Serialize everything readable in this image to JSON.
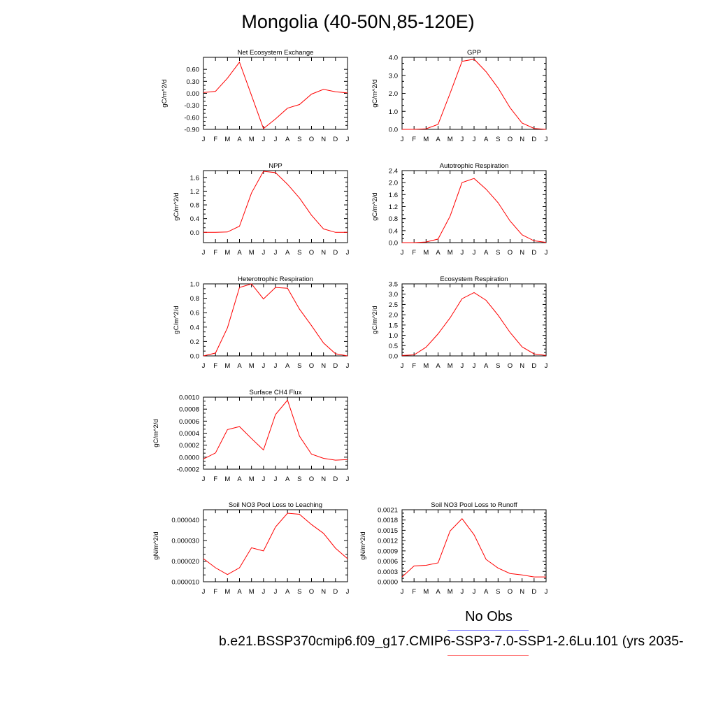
{
  "title": "Mongolia (40-50N,85-120E)",
  "legend": {
    "obs_label": "No Obs",
    "case_label": "b.e21.BSSP370cmip6.f09_g17.CMIP6-SSP3-7.0-SSP1-2.6Lu.101 (yrs 2035-",
    "obs_color": "#8080ff",
    "model_color": "#ff8080"
  },
  "colors": {
    "series": "#ff0000",
    "axis": "#000000"
  },
  "chart_data": [
    {
      "type": "line",
      "title": "Net Ecosystem Exchange",
      "ylabel": "gC/m^2/d",
      "categories": [
        "J",
        "F",
        "M",
        "A",
        "M",
        "J",
        "J",
        "A",
        "S",
        "O",
        "N",
        "D",
        "J"
      ],
      "ylim": [
        -0.9,
        0.9
      ],
      "yticks": [
        -0.9,
        -0.6,
        -0.3,
        0.0,
        0.3,
        0.6
      ],
      "ytick_labels": [
        "-0.90",
        "-0.60",
        "-0.30",
        "0.00",
        "0.30",
        "0.60"
      ],
      "values": [
        0.02,
        0.05,
        0.38,
        0.78,
        -0.05,
        -0.88,
        -0.64,
        -0.37,
        -0.28,
        -0.02,
        0.1,
        0.04,
        0.01
      ]
    },
    {
      "type": "line",
      "title": "GPP",
      "ylabel": "gC/m^2/d",
      "categories": [
        "J",
        "F",
        "M",
        "A",
        "M",
        "J",
        "J",
        "A",
        "S",
        "O",
        "N",
        "D",
        "J"
      ],
      "ylim": [
        0,
        4
      ],
      "yticks": [
        0,
        1,
        2,
        3,
        4
      ],
      "ytick_labels": [
        "0.0",
        "1.0",
        "2.0",
        "3.0",
        "4.0"
      ],
      "values": [
        0.0,
        0.0,
        0.03,
        0.28,
        2.0,
        3.78,
        3.9,
        3.2,
        2.3,
        1.2,
        0.35,
        0.05,
        0.0
      ]
    },
    {
      "type": "line",
      "title": "NPP",
      "ylabel": "gC/m^2/d",
      "categories": [
        "J",
        "F",
        "M",
        "A",
        "M",
        "J",
        "J",
        "A",
        "S",
        "O",
        "N",
        "D",
        "J"
      ],
      "ylim": [
        -0.3,
        1.8
      ],
      "yticks": [
        0.0,
        0.4,
        0.8,
        1.2,
        1.6
      ],
      "ytick_labels": [
        "0.0",
        "0.4",
        "0.8",
        "1.2",
        "1.6"
      ],
      "values": [
        0.0,
        0.0,
        0.01,
        0.18,
        1.15,
        1.78,
        1.74,
        1.4,
        1.0,
        0.5,
        0.1,
        0.0,
        0.0
      ]
    },
    {
      "type": "line",
      "title": "Autotrophic Respiration",
      "ylabel": "gC/m^2/d",
      "categories": [
        "J",
        "F",
        "M",
        "A",
        "M",
        "J",
        "J",
        "A",
        "S",
        "O",
        "N",
        "D",
        "J"
      ],
      "ylim": [
        0,
        2.4
      ],
      "yticks": [
        0,
        0.4,
        0.8,
        1.2,
        1.6,
        2.0,
        2.4
      ],
      "ytick_labels": [
        "0.0",
        "0.4",
        "0.8",
        "1.2",
        "1.6",
        "2.0",
        "2.4"
      ],
      "values": [
        0.0,
        0.0,
        0.02,
        0.12,
        0.88,
        2.0,
        2.14,
        1.78,
        1.33,
        0.72,
        0.26,
        0.06,
        0.01
      ]
    },
    {
      "type": "line",
      "title": "Heterotrophic Respiration",
      "ylabel": "gC/m^2/d",
      "categories": [
        "J",
        "F",
        "M",
        "A",
        "M",
        "J",
        "J",
        "A",
        "S",
        "O",
        "N",
        "D",
        "J"
      ],
      "ylim": [
        0,
        1
      ],
      "yticks": [
        0,
        0.2,
        0.4,
        0.6,
        0.8,
        1.0
      ],
      "ytick_labels": [
        "0.0",
        "0.2",
        "0.4",
        "0.6",
        "0.8",
        "1.0"
      ],
      "values": [
        0.0,
        0.04,
        0.39,
        0.95,
        1.0,
        0.79,
        0.95,
        0.94,
        0.65,
        0.42,
        0.18,
        0.03,
        0.0
      ]
    },
    {
      "type": "line",
      "title": "Ecosystem Respiration",
      "ylabel": "gC/m^2/d",
      "categories": [
        "J",
        "F",
        "M",
        "A",
        "M",
        "J",
        "J",
        "A",
        "S",
        "O",
        "N",
        "D",
        "J"
      ],
      "ylim": [
        0,
        3.5
      ],
      "yticks": [
        0,
        0.5,
        1.0,
        1.5,
        2.0,
        2.5,
        3.0,
        3.5
      ],
      "ytick_labels": [
        "0.0",
        "0.5",
        "1.0",
        "1.5",
        "2.0",
        "2.5",
        "3.0",
        "3.5"
      ],
      "values": [
        0.02,
        0.05,
        0.42,
        1.07,
        1.85,
        2.78,
        3.08,
        2.7,
        1.98,
        1.14,
        0.44,
        0.1,
        0.02
      ]
    },
    {
      "type": "line",
      "title": "Surface CH4 Flux",
      "ylabel": "gC/m^2/d",
      "categories": [
        "J",
        "F",
        "M",
        "A",
        "M",
        "J",
        "J",
        "A",
        "S",
        "O",
        "N",
        "D",
        "J"
      ],
      "ylim": [
        -0.0002,
        0.001
      ],
      "yticks": [
        -0.0002,
        0.0,
        0.0002,
        0.0004,
        0.0006,
        0.0008,
        0.001
      ],
      "ytick_labels": [
        "-0.0002",
        "0.0000",
        "0.0002",
        "0.0004",
        "0.0006",
        "0.0008",
        "0.0010"
      ],
      "values": [
        -3e-05,
        7e-05,
        0.00046,
        0.00051,
        0.00031,
        0.00012,
        0.00071,
        0.00095,
        0.00035,
        5e-05,
        -2e-05,
        -5e-05,
        -4e-05
      ]
    },
    {
      "type": "line",
      "title": "Soil NO3 Pool Loss to Leaching",
      "ylabel": "gN/m^2/d",
      "categories": [
        "J",
        "F",
        "M",
        "A",
        "M",
        "J",
        "J",
        "A",
        "S",
        "O",
        "N",
        "D",
        "J"
      ],
      "ylim": [
        1e-05,
        4.5e-05
      ],
      "yticks": [
        1e-05,
        2e-05,
        3e-05,
        4e-05
      ],
      "ytick_labels": [
        "0.000010",
        "0.000020",
        "0.000030",
        "0.000040"
      ],
      "values": [
        2.12e-05,
        1.68e-05,
        1.35e-05,
        1.68e-05,
        2.65e-05,
        2.5e-05,
        3.66e-05,
        4.33e-05,
        4.28e-05,
        3.78e-05,
        3.35e-05,
        2.63e-05,
        2.12e-05
      ]
    },
    {
      "type": "line",
      "title": "Soil NO3 Pool Loss to Runoff",
      "ylabel": "gN/m^2/d",
      "categories": [
        "J",
        "F",
        "M",
        "A",
        "M",
        "J",
        "J",
        "A",
        "S",
        "O",
        "N",
        "D",
        "J"
      ],
      "ylim": [
        0,
        0.0021
      ],
      "yticks": [
        0,
        0.0003,
        0.0006,
        0.0009,
        0.0012,
        0.0015,
        0.0018,
        0.0021
      ],
      "ytick_labels": [
        "0.0000",
        "0.0003",
        "0.0006",
        "0.0009",
        "0.0012",
        "0.0015",
        "0.0018",
        "0.0021"
      ],
      "values": [
        0.00014,
        0.00046,
        0.00048,
        0.00055,
        0.00148,
        0.00184,
        0.00137,
        0.00065,
        0.0004,
        0.00024,
        0.0002,
        0.00014,
        0.00014
      ]
    }
  ]
}
